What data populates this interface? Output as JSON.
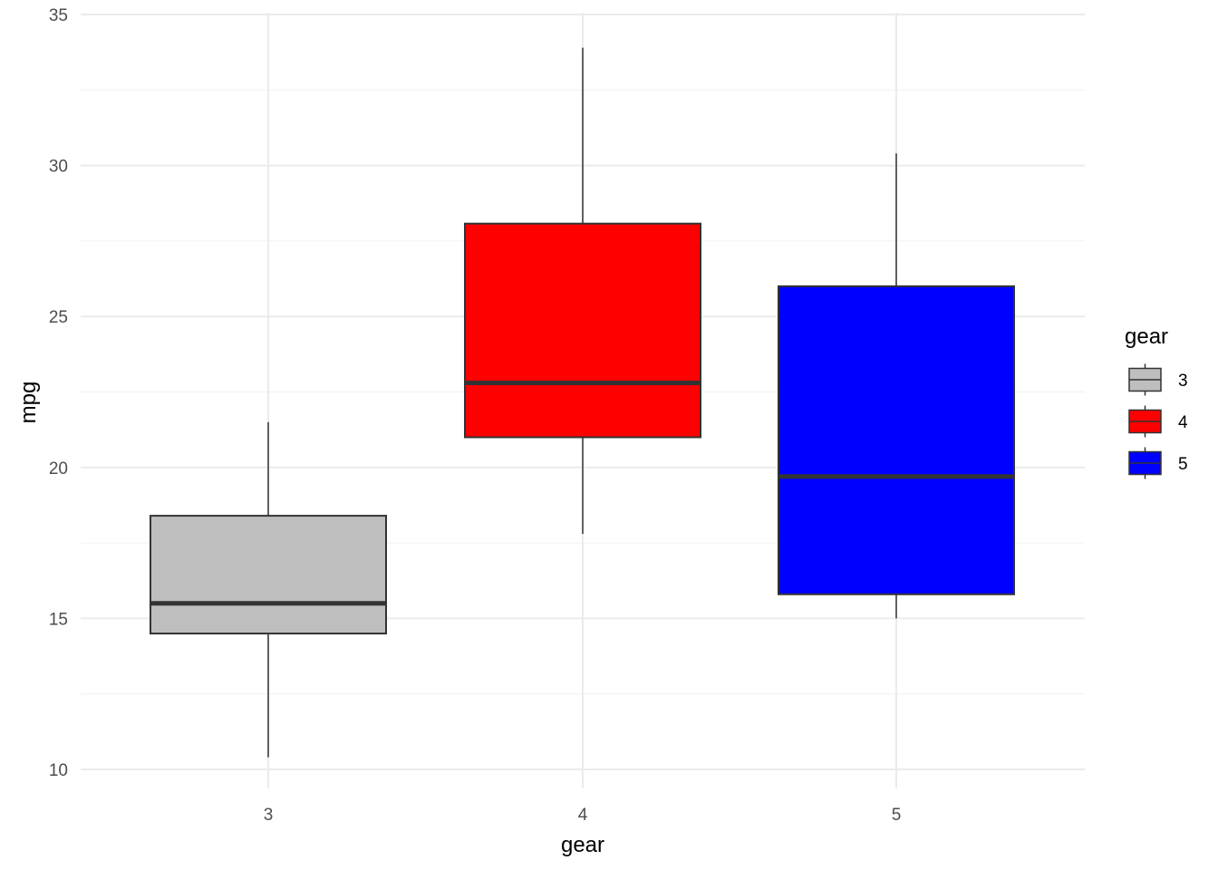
{
  "chart_data": {
    "type": "boxplot",
    "xlabel": "gear",
    "ylabel": "mpg",
    "ylim": [
      9.5,
      35.5
    ],
    "y_ticks": [
      10,
      15,
      20,
      25,
      30,
      35
    ],
    "y_tick_labels": [
      "10",
      "15",
      "20",
      "25",
      "30",
      "35"
    ],
    "categories": [
      "3",
      "4",
      "5"
    ],
    "grid": true,
    "boxes": [
      {
        "category": "3",
        "min": 10.4,
        "q1": 14.5,
        "median": 15.5,
        "q3": 18.4,
        "max": 21.5,
        "fill": "#bebebe"
      },
      {
        "category": "4",
        "min": 17.8,
        "q1": 21.0,
        "median": 22.8,
        "q3": 28.075,
        "max": 33.9,
        "fill": "#ff0000"
      },
      {
        "category": "5",
        "min": 15.0,
        "q1": 15.8,
        "median": 19.7,
        "q3": 26.0,
        "max": 30.4,
        "fill": "#0000ff"
      }
    ],
    "legend": {
      "title": "gear",
      "position": "right",
      "entries": [
        {
          "label": "3",
          "fill": "#bebebe"
        },
        {
          "label": "4",
          "fill": "#ff0000"
        },
        {
          "label": "5",
          "fill": "#0000ff"
        }
      ]
    }
  }
}
